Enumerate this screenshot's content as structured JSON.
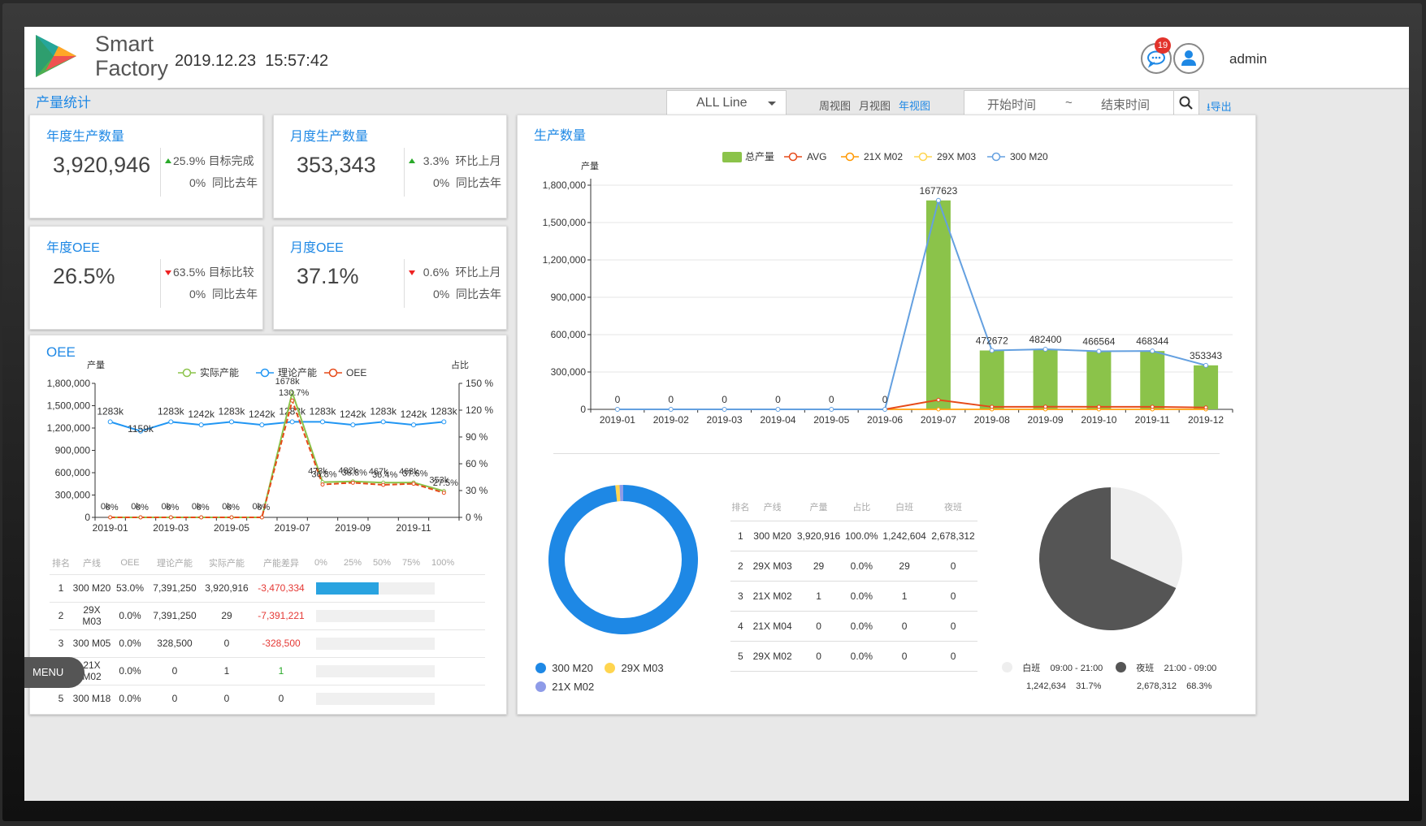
{
  "header": {
    "brand_line1": "Smart",
    "brand_line2": "Factory",
    "date": "2019.12.23",
    "time": "15:57:42",
    "notif_count": "19",
    "user": "admin",
    "icons": [
      "message-icon",
      "user-icon"
    ]
  },
  "toolbar": {
    "section_title": "产量统计",
    "line_select": "ALL Line",
    "views": [
      "周视图",
      "月视图",
      "年视图"
    ],
    "active_view": "年视图",
    "start_placeholder": "开始时间",
    "range_sep": "~",
    "end_placeholder": "结束时间",
    "export": "导出"
  },
  "kpis": [
    {
      "title": "年度生产数量",
      "value": "3,920,946",
      "d1": "25.9%",
      "d1_label": "目标完成",
      "d1_dir": "up",
      "d2": "0%",
      "d2_label": "同比去年"
    },
    {
      "title": "月度生产数量",
      "value": "353,343",
      "d1": "3.3%",
      "d1_label": "环比上月",
      "d1_dir": "up",
      "d2": "0%",
      "d2_label": "同比去年"
    },
    {
      "title": "年度OEE",
      "value": "26.5%",
      "d1": "63.5%",
      "d1_label": "目标比较",
      "d1_dir": "down",
      "d2": "0%",
      "d2_label": "同比去年"
    },
    {
      "title": "月度OEE",
      "value": "37.1%",
      "d1": "0.6%",
      "d1_label": "环比上月",
      "d1_dir": "down",
      "d2": "0%",
      "d2_label": "同比去年"
    }
  ],
  "oee": {
    "title": "OEE",
    "left_axis": "产量",
    "right_axis": "占比",
    "legend": [
      "实际产能",
      "理论产能",
      "OEE"
    ],
    "table_headers": [
      "排名",
      "产线",
      "OEE",
      "理论产能",
      "实际产能",
      "产能差异",
      "0%",
      "25%",
      "50%",
      "75%",
      "100%"
    ],
    "rows": [
      {
        "rank": "1",
        "line": "300 M20",
        "oee": "53.0%",
        "theory": "7,391,250",
        "actual": "3,920,916",
        "diff": "-3,470,334",
        "pct": 53
      },
      {
        "rank": "2",
        "line": "29X M03",
        "oee": "0.0%",
        "theory": "7,391,250",
        "actual": "29",
        "diff": "-7,391,221",
        "pct": 0
      },
      {
        "rank": "3",
        "line": "300 M05",
        "oee": "0.0%",
        "theory": "328,500",
        "actual": "0",
        "diff": "-328,500",
        "pct": 0
      },
      {
        "rank": "4",
        "line": "21X M02",
        "oee": "0.0%",
        "theory": "0",
        "actual": "1",
        "diff": "1",
        "pct": 0
      },
      {
        "rank": "5",
        "line": "300 M18",
        "oee": "0.0%",
        "theory": "0",
        "actual": "0",
        "diff": "0",
        "pct": 0
      }
    ]
  },
  "production": {
    "title": "生产数量",
    "legend": [
      "总产量",
      "AVG",
      "21X M02",
      "29X M03",
      "300 M20"
    ],
    "table_headers": [
      "排名",
      "产线",
      "产量",
      "占比",
      "白班",
      "夜班"
    ],
    "rows": [
      [
        "1",
        "300 M20",
        "3,920,916",
        "100.0%",
        "1,242,604",
        "2,678,312"
      ],
      [
        "2",
        "29X M03",
        "29",
        "0.0%",
        "29",
        "0"
      ],
      [
        "3",
        "21X M02",
        "1",
        "0.0%",
        "1",
        "0"
      ],
      [
        "4",
        "21X M04",
        "0",
        "0.0%",
        "0",
        "0"
      ],
      [
        "5",
        "29X M02",
        "0",
        "0.0%",
        "0",
        "0"
      ]
    ],
    "donut_legend": [
      "300 M20",
      "29X M03",
      "21X M02"
    ],
    "shift": [
      {
        "name": "白班",
        "time": "09:00 - 21:00",
        "value": "1,242,634",
        "pct": "31.7%"
      },
      {
        "name": "夜班",
        "time": "21:00 - 09:00",
        "value": "2,678,312",
        "pct": "68.3%"
      }
    ]
  },
  "menu": "MENU",
  "colors": {
    "accent": "#1e88e5",
    "bar": "#8bc34a",
    "actual": "#8bc34a",
    "theory": "#2196f3",
    "oee": "#e64a19",
    "avg": "#e64a19",
    "m21x": "#ff9800",
    "m29x": "#ffd54f",
    "m300": "#64a0e0"
  },
  "chart_data": [
    {
      "type": "line",
      "id": "oee-chart",
      "x": [
        "2019-01",
        "2019-02",
        "2019-03",
        "2019-04",
        "2019-05",
        "2019-06",
        "2019-07",
        "2019-08",
        "2019-09",
        "2019-10",
        "2019-11",
        "2019-12"
      ],
      "xticks": [
        "2019-01",
        "2019-03",
        "2019-05",
        "2019-07",
        "2019-09",
        "2019-11"
      ],
      "ylim": [
        0,
        1800000
      ],
      "yticks": [
        "0",
        "300,000",
        "600,000",
        "900,000",
        "1,200,000",
        "1,500,000",
        "1,800,000"
      ],
      "y2lim": [
        0,
        150
      ],
      "y2ticks": [
        "0 %",
        "30 %",
        "60 %",
        "90 %",
        "120 %",
        "150 %"
      ],
      "series": [
        {
          "name": "实际产能",
          "values": [
            0,
            0,
            0,
            0,
            0,
            0,
            1677623,
            472672,
            482400,
            466564,
            468344,
            353343
          ]
        },
        {
          "name": "理论产能",
          "values": [
            1283000,
            1159000,
            1283000,
            1242000,
            1283000,
            1242000,
            1283000,
            1283000,
            1242000,
            1283000,
            1242000,
            1283000
          ],
          "labels": [
            "1283k",
            "1159k",
            "1283k",
            "1242k",
            "1283k",
            "1242k",
            "1283k",
            "1283k",
            "1242k",
            "1283k",
            "1242k",
            "1283k"
          ]
        },
        {
          "name": "OEE",
          "values": [
            0,
            0,
            0,
            0,
            0,
            0,
            130.7,
            36.8,
            38.8,
            36.4,
            37.6,
            27.5
          ],
          "labels": [
            "0%",
            "0%",
            "0%",
            "0%",
            "0%",
            "0%",
            "130.7%",
            "36.8%",
            "38.8%",
            "36.4%",
            "37.6%",
            "27.5%"
          ]
        }
      ],
      "actual_labels": [
        "0k",
        "0k",
        "0k",
        "0k",
        "0k",
        "0k",
        "1678k",
        "473k",
        "482k",
        "467k",
        "468k",
        "353k"
      ]
    },
    {
      "type": "bar",
      "id": "prod-chart",
      "categories": [
        "2019-01",
        "2019-02",
        "2019-03",
        "2019-04",
        "2019-05",
        "2019-06",
        "2019-07",
        "2019-08",
        "2019-09",
        "2019-10",
        "2019-11",
        "2019-12"
      ],
      "ylabel": "产量",
      "ylim": [
        0,
        1800000
      ],
      "yticks": [
        "0",
        "300,000",
        "600,000",
        "900,000",
        "1,200,000",
        "1,500,000",
        "1,800,000"
      ],
      "series": [
        {
          "name": "总产量",
          "values": [
            0,
            0,
            0,
            0,
            0,
            0,
            1677623,
            472672,
            482400,
            466564,
            468344,
            353343
          ]
        },
        {
          "name": "AVG",
          "values": [
            0,
            0,
            0,
            0,
            0,
            0,
            76000,
            20000,
            21000,
            20000,
            20000,
            15000
          ]
        },
        {
          "name": "21X M02",
          "values": [
            0,
            0,
            0,
            0,
            0,
            0,
            0,
            0,
            0,
            0,
            0,
            0
          ]
        },
        {
          "name": "29X M03",
          "values": [
            0,
            0,
            0,
            0,
            0,
            0,
            0,
            0,
            0,
            0,
            0,
            0
          ]
        },
        {
          "name": "300 M20",
          "values": [
            0,
            0,
            0,
            0,
            0,
            0,
            1677623,
            472672,
            482400,
            466564,
            468344,
            353343
          ]
        }
      ]
    },
    {
      "type": "pie",
      "id": "donut",
      "labels": [
        "300 M20",
        "29X M03",
        "21X M02"
      ],
      "values": [
        3920916,
        29,
        1
      ],
      "display_share": [
        98.3,
        0.9,
        0.8
      ]
    },
    {
      "type": "pie",
      "id": "shift-pie",
      "labels": [
        "白班",
        "夜班"
      ],
      "values": [
        31.7,
        68.3
      ]
    }
  ]
}
